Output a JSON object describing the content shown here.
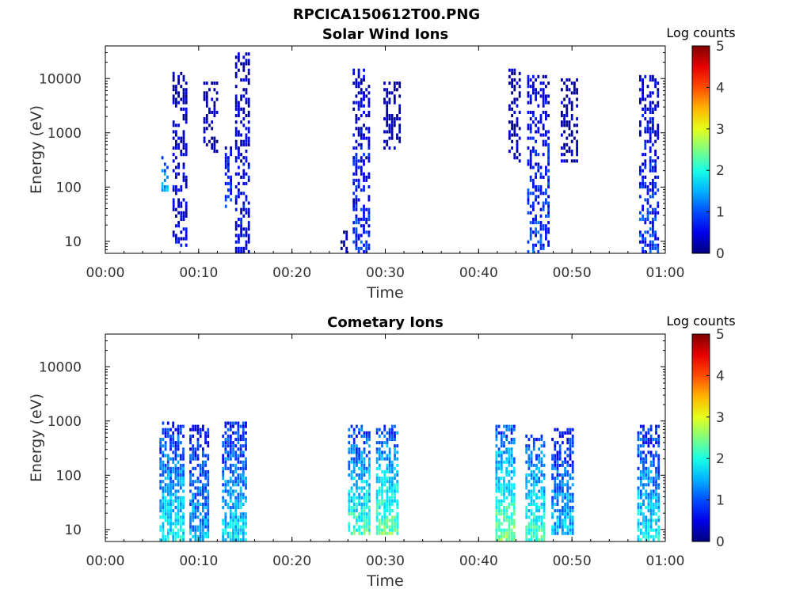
{
  "figure": {
    "title": "RPCICA150612T00.PNG"
  },
  "colorbar": {
    "label": "Log counts",
    "ticks": [
      "0",
      "1",
      "2",
      "3",
      "4",
      "5"
    ],
    "range": [
      0,
      5
    ],
    "colormap": "jet"
  },
  "chart_data": [
    {
      "type": "heatmap",
      "title": "Solar Wind Ions",
      "xlabel": "Time",
      "ylabel": "Energy (eV)",
      "x_ticks": [
        "00:00",
        "00:10",
        "00:20",
        "00:30",
        "00:40",
        "00:50",
        "01:00"
      ],
      "x_range_minutes": [
        0,
        60
      ],
      "y_scale": "log",
      "y_ticks": [
        "10",
        "100",
        "1000",
        "10000"
      ],
      "ylim": [
        6,
        40000
      ],
      "bursts": [
        {
          "start_min": 6.0,
          "end_min": 6.6,
          "emin": 80,
          "emax": 450,
          "level": 1.6
        },
        {
          "start_min": 7.2,
          "end_min": 8.8,
          "emin": 8,
          "emax": 14000,
          "level": 0.5
        },
        {
          "start_min": 10.5,
          "end_min": 12.0,
          "emin": 400,
          "emax": 9000,
          "level": 0.2
        },
        {
          "start_min": 12.8,
          "end_min": 13.6,
          "emin": 40,
          "emax": 600,
          "level": 1.0
        },
        {
          "start_min": 13.9,
          "end_min": 15.5,
          "emin": 6,
          "emax": 30000,
          "level": 0.6
        },
        {
          "start_min": 25.2,
          "end_min": 26.0,
          "emin": 6,
          "emax": 15,
          "level": 0.2
        },
        {
          "start_min": 26.5,
          "end_min": 28.3,
          "emin": 6,
          "emax": 15000,
          "level": 0.8
        },
        {
          "start_min": 29.8,
          "end_min": 31.5,
          "emin": 500,
          "emax": 9000,
          "level": 0.2
        },
        {
          "start_min": 43.2,
          "end_min": 44.5,
          "emin": 300,
          "emax": 15000,
          "level": 0.2
        },
        {
          "start_min": 45.2,
          "end_min": 47.5,
          "emin": 6,
          "emax": 12000,
          "level": 0.9
        },
        {
          "start_min": 48.8,
          "end_min": 50.5,
          "emin": 300,
          "emax": 10000,
          "level": 0.2
        },
        {
          "start_min": 57.2,
          "end_min": 59.2,
          "emin": 6,
          "emax": 12000,
          "level": 0.9
        }
      ]
    },
    {
      "type": "heatmap",
      "title": "Cometary Ions",
      "xlabel": "Time",
      "ylabel": "Energy (eV)",
      "x_ticks": [
        "00:00",
        "00:10",
        "00:20",
        "00:30",
        "00:40",
        "00:50",
        "01:00"
      ],
      "x_range_minutes": [
        0,
        60
      ],
      "y_scale": "log",
      "y_ticks": [
        "10",
        "100",
        "1000",
        "10000"
      ],
      "ylim": [
        6,
        40000
      ],
      "bursts": [
        {
          "start_min": 5.8,
          "end_min": 8.5,
          "emin": 6,
          "emax": 1000,
          "level": 1.9
        },
        {
          "start_min": 9.0,
          "end_min": 11.0,
          "emin": 6,
          "emax": 900,
          "level": 1.5
        },
        {
          "start_min": 12.5,
          "end_min": 15.0,
          "emin": 6,
          "emax": 1000,
          "level": 1.8
        },
        {
          "start_min": 26.0,
          "end_min": 28.2,
          "emin": 8,
          "emax": 800,
          "level": 2.2
        },
        {
          "start_min": 29.0,
          "end_min": 31.2,
          "emin": 8,
          "emax": 900,
          "level": 2.4
        },
        {
          "start_min": 41.8,
          "end_min": 43.8,
          "emin": 6,
          "emax": 900,
          "level": 2.5
        },
        {
          "start_min": 45.0,
          "end_min": 47.0,
          "emin": 6,
          "emax": 600,
          "level": 2.2
        },
        {
          "start_min": 47.8,
          "end_min": 50.0,
          "emin": 8,
          "emax": 700,
          "level": 1.6
        },
        {
          "start_min": 57.0,
          "end_min": 59.3,
          "emin": 6,
          "emax": 800,
          "level": 1.9
        }
      ]
    }
  ]
}
